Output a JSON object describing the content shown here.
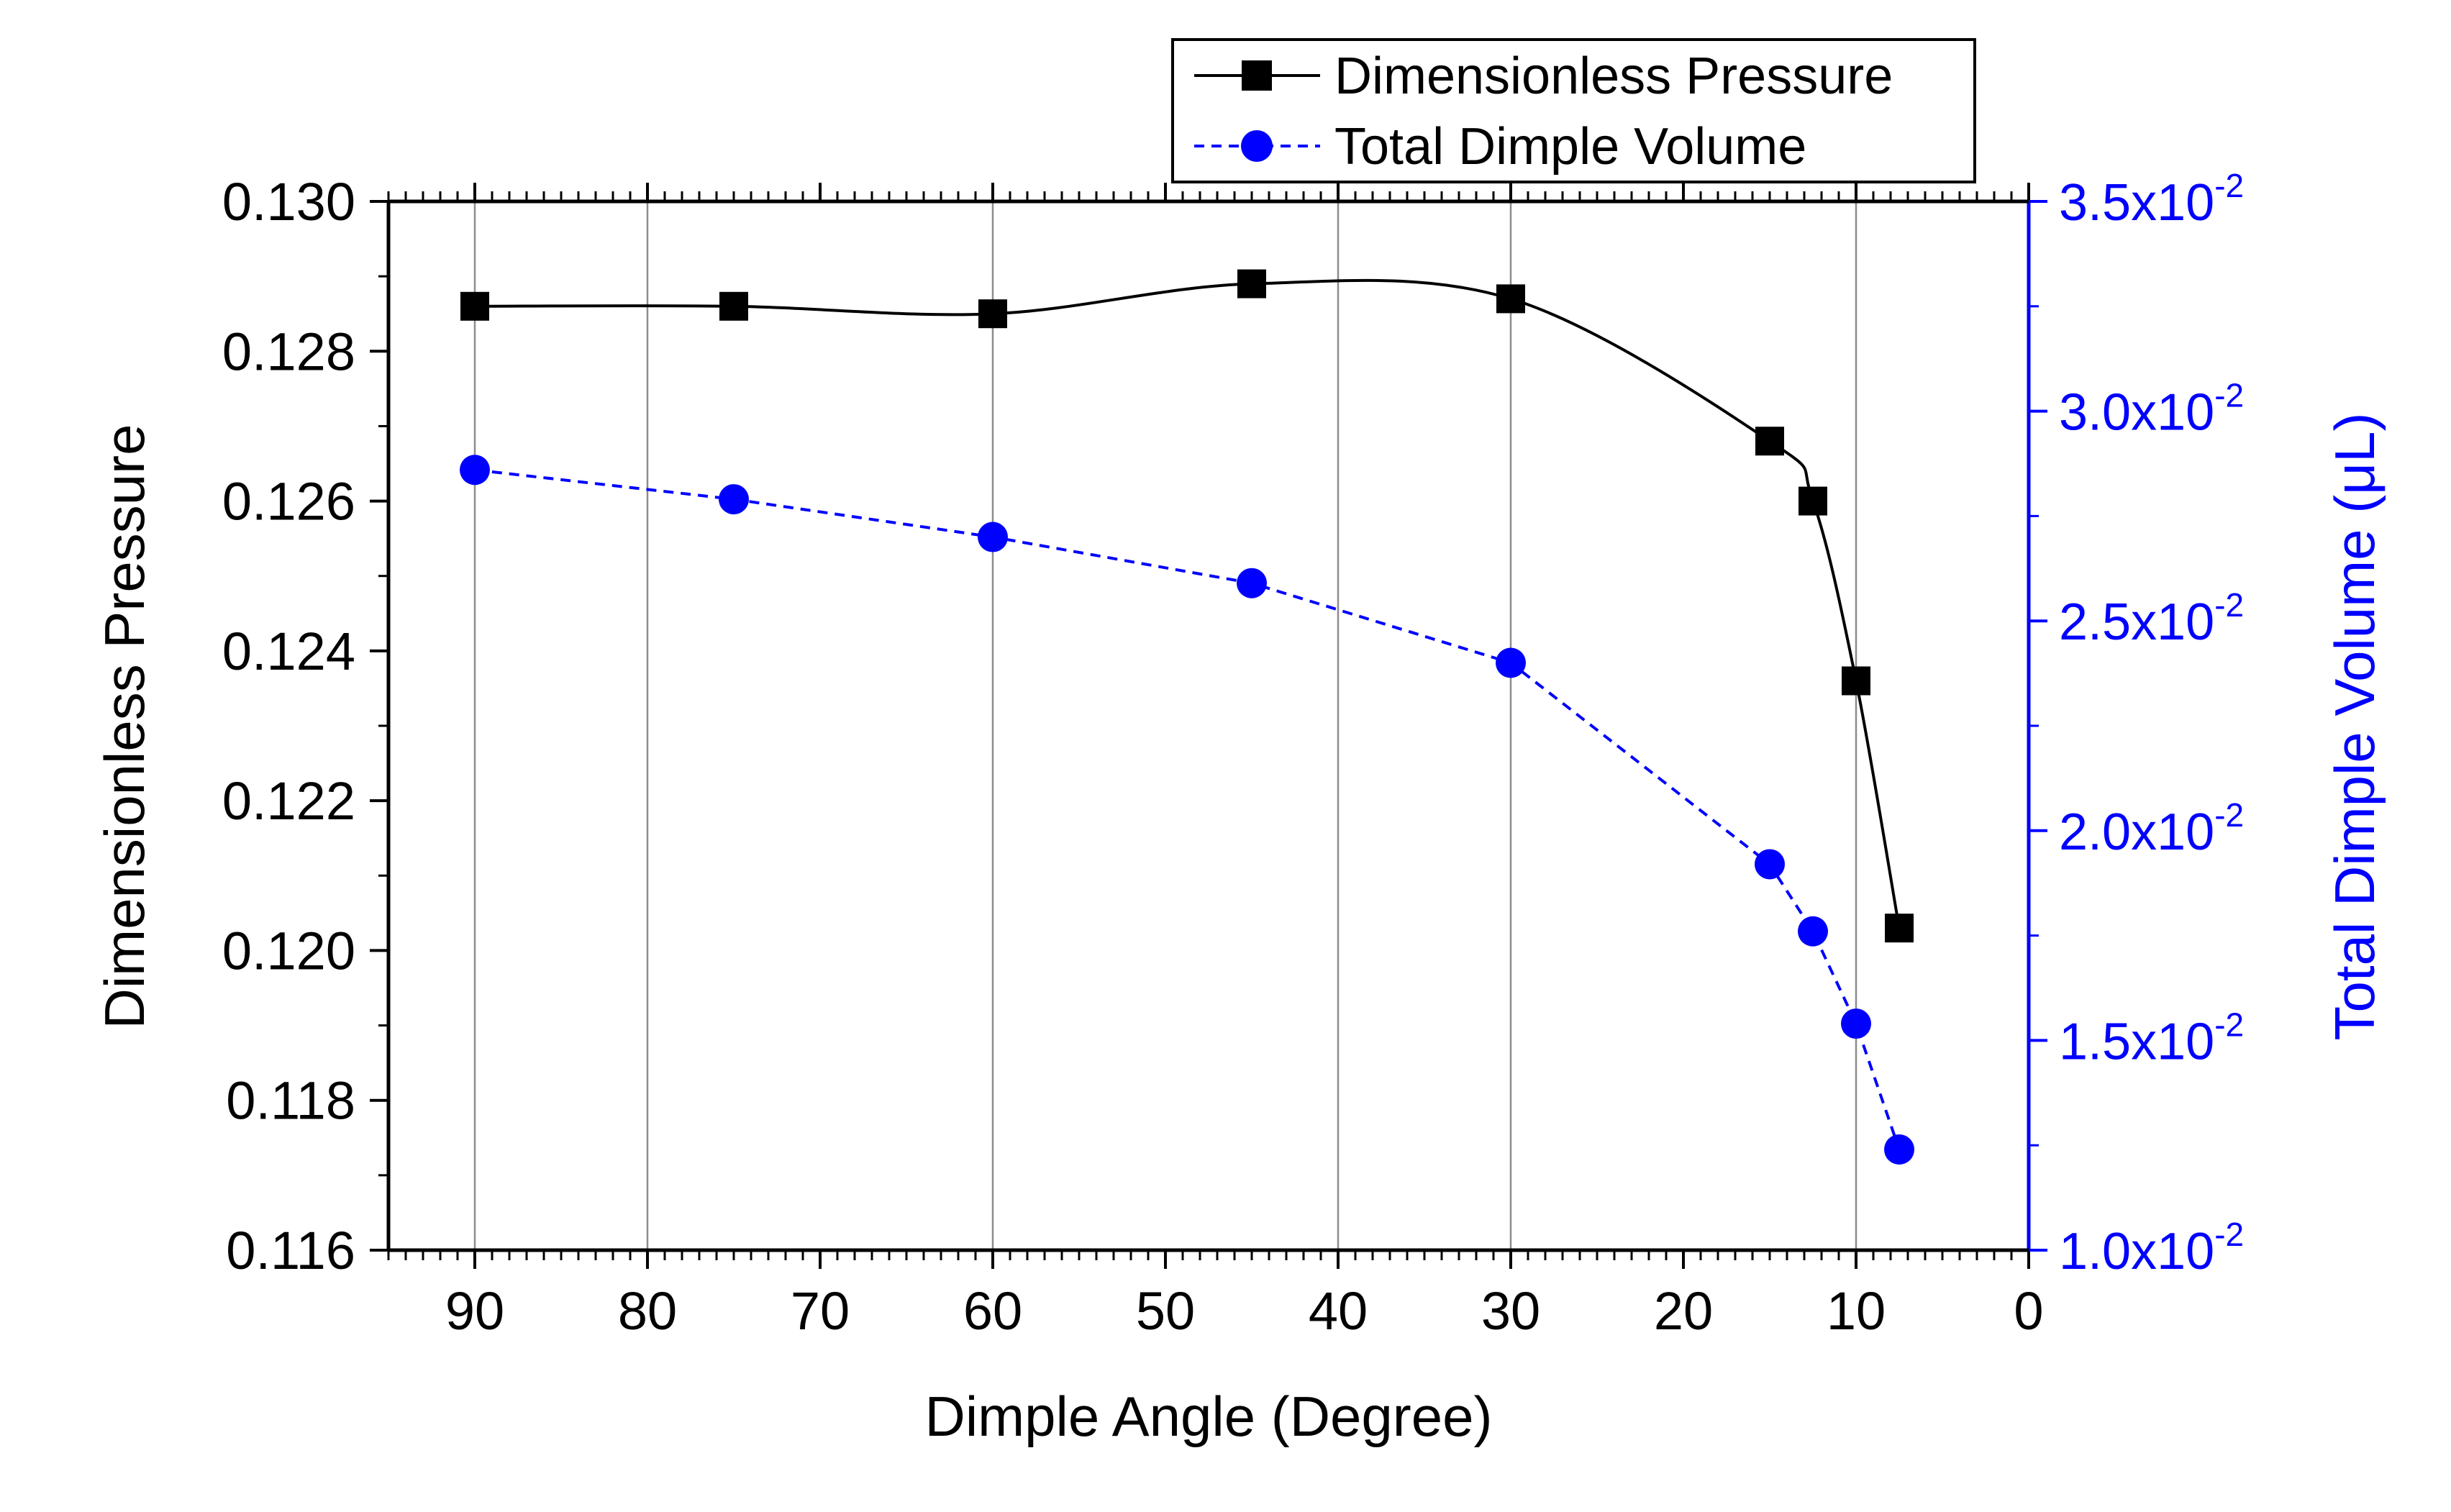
{
  "chart_data": {
    "type": "line",
    "xlabel": "Dimple Angle (Degree)",
    "ylabel_left": "Dimensionless Pressure",
    "ylabel_right": "Total Dimple Volume (μL)",
    "xlim": [
      95,
      0
    ],
    "x_ticks": [
      90,
      80,
      70,
      60,
      50,
      40,
      30,
      20,
      10,
      0
    ],
    "y_left_lim": [
      0.116,
      0.13
    ],
    "y_left_ticks": [
      "0.116",
      "0.118",
      "0.120",
      "0.122",
      "0.124",
      "0.126",
      "0.128",
      "0.130"
    ],
    "y_right_lim": [
      0.01,
      0.035
    ],
    "y_right_ticks": [
      {
        "value": 0.01,
        "mant": "1.0x10",
        "exp": "-2"
      },
      {
        "value": 0.015,
        "mant": "1.5x10",
        "exp": "-2"
      },
      {
        "value": 0.02,
        "mant": "2.0x10",
        "exp": "-2"
      },
      {
        "value": 0.025,
        "mant": "2.5x10",
        "exp": "-2"
      },
      {
        "value": 0.03,
        "mant": "3.0x10",
        "exp": "-2"
      },
      {
        "value": 0.035,
        "mant": "3.5x10",
        "exp": "-2"
      }
    ],
    "vertical_gridlines_at": [
      90,
      80,
      60,
      40,
      30,
      10
    ],
    "legend_position": "top-right",
    "series": [
      {
        "name": "Dimensionless Pressure",
        "axis": "left",
        "color": "#000000",
        "marker": "square",
        "line": "solid-smooth",
        "x": [
          90,
          75,
          60,
          45,
          30,
          15,
          12.5,
          10,
          7.5
        ],
        "y": [
          0.1286,
          0.1286,
          0.1285,
          0.1289,
          0.1287,
          0.1268,
          0.126,
          0.1236,
          0.1203
        ]
      },
      {
        "name": "Total Dimple Volume",
        "axis": "right",
        "color": "#0000ff",
        "marker": "circle",
        "line": "dashed",
        "x": [
          90,
          75,
          60,
          45,
          30,
          15,
          12.5,
          10,
          7.5
        ],
        "y": [
          0.0286,
          0.0279,
          0.027,
          0.0259,
          0.024,
          0.0192,
          0.0176,
          0.0154,
          0.0124
        ]
      }
    ]
  }
}
